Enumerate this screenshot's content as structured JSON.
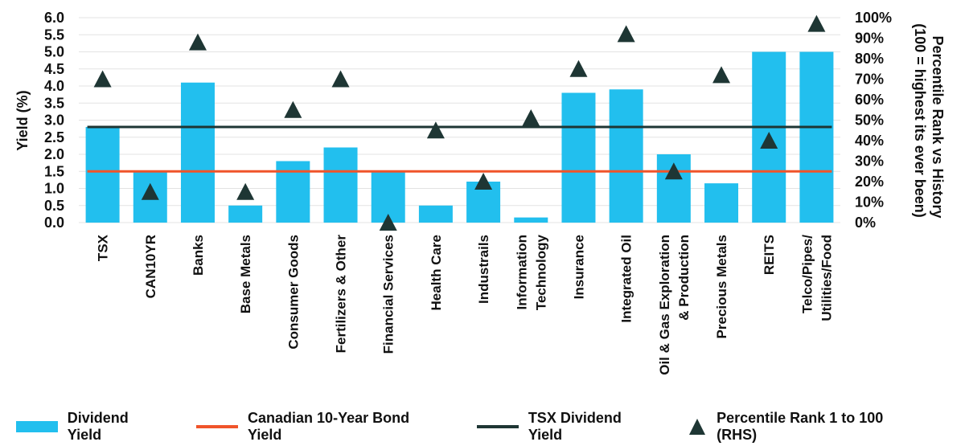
{
  "chart_data": {
    "type": "bar",
    "categories": [
      "TSX",
      "CAN10YR",
      "Banks",
      "Base Metals",
      "Consumer Goods",
      "Fertilizers & Other",
      "Financial Services",
      "Health Care",
      "Industrails",
      "Information Technology",
      "Insurance",
      "Integrated Oil",
      "Oil & Gas Exploration & Production",
      "Precious Metals",
      "REITS",
      "Telco/Pipes/ Utilities/Food"
    ],
    "category_lines": [
      [
        "TSX"
      ],
      [
        "CAN10YR"
      ],
      [
        "Banks"
      ],
      [
        "Base Metals"
      ],
      [
        "Consumer Goods"
      ],
      [
        "Fertilizers & Other"
      ],
      [
        "Financial Services"
      ],
      [
        "Health Care"
      ],
      [
        "Industrails"
      ],
      [
        "Information",
        "Technology"
      ],
      [
        "Insurance"
      ],
      [
        "Integrated Oil"
      ],
      [
        "Oil & Gas Exploration",
        "& Production"
      ],
      [
        "Precious Metals"
      ],
      [
        "REITS"
      ],
      [
        "Telco/Pipes/",
        "Utilities/Food"
      ]
    ],
    "series": [
      {
        "name": "Dividend Yield",
        "type": "bar",
        "axis": "left",
        "color": "#22bfee",
        "values": [
          2.8,
          1.5,
          4.1,
          0.5,
          1.8,
          2.2,
          1.5,
          0.5,
          1.2,
          0.15,
          3.8,
          3.9,
          2.0,
          1.15,
          5.0,
          5.0
        ]
      },
      {
        "name": "Canadian 10-Year Bond Yield",
        "type": "line",
        "axis": "left",
        "color": "#f0542a",
        "value": 1.5
      },
      {
        "name": "TSX Dividend Yield",
        "type": "line",
        "axis": "left",
        "color": "#1e3634",
        "value": 2.8
      },
      {
        "name": "Percentile Rank 1 to 100 (RHS)",
        "type": "scatter",
        "marker": "triangle",
        "axis": "right",
        "color": "#1e3634",
        "values": [
          70,
          15,
          88,
          15,
          55,
          70,
          0,
          45,
          20,
          51,
          75,
          92,
          25,
          72,
          40,
          97
        ]
      }
    ],
    "y_left": {
      "label": "Yield (%)",
      "ticks": [
        "6.0",
        "5.5",
        "5.0",
        "4.5",
        "4.0",
        "3.5",
        "3.0",
        "2.5",
        "2.0",
        "1.5",
        "1.0",
        "0.5",
        "0.0"
      ],
      "min": 0,
      "max": 6
    },
    "y_right": {
      "label_lines": [
        "Percentile Rank vs History",
        "(100 = highest its ever been)"
      ],
      "ticks": [
        "100%",
        "90%",
        "80%",
        "70%",
        "60%",
        "50%",
        "40%",
        "30%",
        "20%",
        "10%",
        "0%"
      ],
      "min": 0,
      "max": 100
    },
    "grid": true,
    "legend_position": "bottom"
  }
}
